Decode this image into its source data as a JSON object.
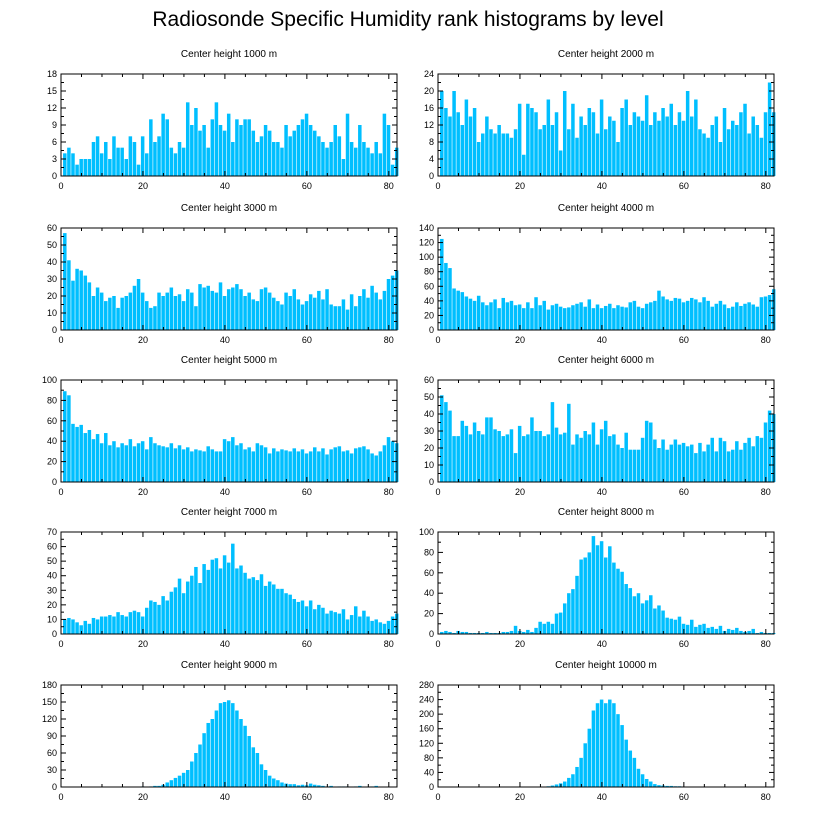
{
  "title": "Radiosonde Specific Humidity rank histograms by level",
  "colors": {
    "bar": "#00bfff",
    "axis": "#000000",
    "background": "#ffffff"
  },
  "chart_data": [
    {
      "type": "bar",
      "title": "Center height 1000 m",
      "xlim": [
        0,
        82
      ],
      "xticks": [
        0,
        20,
        40,
        60,
        80
      ],
      "ylim": [
        0,
        18
      ],
      "yticks": [
        0,
        3,
        6,
        9,
        12,
        15,
        18
      ],
      "values": [
        4,
        5,
        4,
        2,
        3,
        3,
        3,
        6,
        7,
        4,
        6,
        3,
        7,
        5,
        5,
        3,
        7,
        6,
        2,
        7,
        4,
        10,
        6,
        7,
        11,
        10,
        5,
        4,
        6,
        5,
        13,
        9,
        12,
        8,
        9,
        5,
        10,
        13,
        9,
        8,
        11,
        6,
        10,
        9,
        10,
        10,
        8,
        6,
        7,
        9,
        8,
        6,
        6,
        5,
        9,
        7,
        8,
        9,
        10,
        11,
        9,
        8,
        7,
        6,
        5,
        6,
        9,
        7,
        3,
        11,
        6,
        5,
        9,
        6,
        5,
        4,
        6,
        4,
        11,
        9,
        2,
        5
      ]
    },
    {
      "type": "bar",
      "title": "Center height 2000 m",
      "xlim": [
        0,
        82
      ],
      "xticks": [
        0,
        20,
        40,
        60,
        80
      ],
      "ylim": [
        0,
        24
      ],
      "yticks": [
        0,
        4,
        8,
        12,
        16,
        20,
        24
      ],
      "values": [
        20,
        16,
        14,
        20,
        15,
        12,
        18,
        14,
        16,
        8,
        10,
        14,
        11,
        10,
        12,
        10,
        10,
        9,
        11,
        17,
        5,
        17,
        16,
        15,
        11,
        12,
        18,
        12,
        15,
        6,
        20,
        11,
        17,
        9,
        14,
        12,
        16,
        15,
        10,
        18,
        11,
        14,
        13,
        8,
        16,
        18,
        12,
        15,
        14,
        13,
        19,
        12,
        15,
        13,
        16,
        14,
        17,
        12,
        15,
        13,
        20,
        14,
        18,
        11,
        10,
        9,
        12,
        14,
        8,
        16,
        11,
        13,
        12,
        15,
        17,
        10,
        14,
        12,
        9,
        15,
        22,
        15
      ]
    },
    {
      "type": "bar",
      "title": "Center height 3000 m",
      "xlim": [
        0,
        82
      ],
      "xticks": [
        0,
        20,
        40,
        60,
        80
      ],
      "ylim": [
        0,
        60
      ],
      "yticks": [
        0,
        10,
        20,
        30,
        40,
        50,
        60
      ],
      "values": [
        57,
        41,
        29,
        36,
        35,
        32,
        28,
        20,
        25,
        22,
        17,
        19,
        20,
        13,
        19,
        20,
        22,
        26,
        30,
        22,
        17,
        13,
        14,
        22,
        20,
        22,
        25,
        20,
        21,
        17,
        24,
        22,
        14,
        27,
        25,
        26,
        23,
        22,
        28,
        20,
        24,
        25,
        27,
        24,
        20,
        22,
        18,
        17,
        24,
        25,
        22,
        19,
        17,
        15,
        22,
        20,
        24,
        18,
        15,
        17,
        21,
        19,
        23,
        18,
        24,
        15,
        14,
        14,
        18,
        12,
        21,
        14,
        20,
        24,
        19,
        26,
        22,
        18,
        23,
        30,
        32,
        35
      ]
    },
    {
      "type": "bar",
      "title": "Center height 4000 m",
      "xlim": [
        0,
        82
      ],
      "xticks": [
        0,
        20,
        40,
        60,
        80
      ],
      "ylim": [
        0,
        140
      ],
      "yticks": [
        0,
        20,
        40,
        60,
        80,
        100,
        120,
        140
      ],
      "values": [
        125,
        92,
        85,
        57,
        54,
        52,
        46,
        43,
        40,
        47,
        38,
        34,
        38,
        42,
        30,
        44,
        38,
        40,
        34,
        35,
        30,
        38,
        30,
        45,
        34,
        40,
        28,
        34,
        36,
        32,
        30,
        31,
        34,
        36,
        38,
        32,
        42,
        30,
        35,
        30,
        33,
        36,
        30,
        34,
        32,
        31,
        38,
        40,
        32,
        30,
        36,
        38,
        40,
        54,
        46,
        42,
        40,
        44,
        43,
        38,
        40,
        44,
        42,
        38,
        45,
        40,
        32,
        36,
        40,
        35,
        30,
        32,
        38,
        33,
        36,
        38,
        35,
        32,
        45,
        46,
        48,
        56
      ]
    },
    {
      "type": "bar",
      "title": "Center height 5000 m",
      "xlim": [
        0,
        82
      ],
      "xticks": [
        0,
        20,
        40,
        60,
        80
      ],
      "ylim": [
        0,
        100
      ],
      "yticks": [
        0,
        20,
        40,
        60,
        80,
        100
      ],
      "values": [
        89,
        85,
        57,
        54,
        56,
        48,
        51,
        42,
        47,
        38,
        48,
        36,
        40,
        34,
        38,
        36,
        42,
        35,
        38,
        40,
        32,
        44,
        38,
        36,
        35,
        34,
        38,
        33,
        36,
        32,
        34,
        30,
        32,
        31,
        30,
        35,
        32,
        30,
        30,
        42,
        40,
        44,
        36,
        38,
        32,
        34,
        30,
        38,
        36,
        34,
        28,
        33,
        30,
        32,
        31,
        30,
        33,
        30,
        32,
        28,
        30,
        34,
        30,
        33,
        27,
        32,
        34,
        35,
        30,
        31,
        28,
        33,
        34,
        35,
        32,
        28,
        26,
        30,
        36,
        44,
        40,
        38
      ]
    },
    {
      "type": "bar",
      "title": "Center height 6000 m",
      "xlim": [
        0,
        82
      ],
      "xticks": [
        0,
        20,
        40,
        60,
        80
      ],
      "ylim": [
        0,
        60
      ],
      "yticks": [
        0,
        10,
        20,
        30,
        40,
        50,
        60
      ],
      "values": [
        51,
        47,
        42,
        27,
        27,
        36,
        33,
        28,
        35,
        30,
        28,
        38,
        38,
        31,
        30,
        27,
        28,
        31,
        17,
        33,
        27,
        28,
        38,
        30,
        30,
        27,
        28,
        47,
        32,
        28,
        29,
        46,
        22,
        28,
        26,
        30,
        28,
        35,
        22,
        31,
        36,
        27,
        28,
        22,
        20,
        29,
        19,
        19,
        19,
        26,
        36,
        35,
        25,
        20,
        25,
        19,
        22,
        25,
        22,
        23,
        21,
        22,
        17,
        23,
        18,
        22,
        26,
        18,
        26,
        24,
        18,
        19,
        24,
        19,
        23,
        26,
        21,
        27,
        26,
        35,
        42,
        40
      ]
    },
    {
      "type": "bar",
      "title": "Center height 7000 m",
      "xlim": [
        0,
        82
      ],
      "xticks": [
        0,
        20,
        40,
        60,
        80
      ],
      "ylim": [
        0,
        70
      ],
      "yticks": [
        0,
        10,
        20,
        30,
        40,
        50,
        60,
        70
      ],
      "values": [
        10,
        11,
        10,
        8,
        6,
        9,
        7,
        11,
        10,
        12,
        12,
        13,
        12,
        15,
        13,
        12,
        15,
        16,
        15,
        12,
        18,
        23,
        22,
        20,
        26,
        23,
        29,
        32,
        38,
        28,
        36,
        40,
        46,
        35,
        48,
        44,
        51,
        52,
        45,
        54,
        49,
        62,
        45,
        47,
        42,
        38,
        39,
        37,
        41,
        33,
        36,
        34,
        31,
        31,
        28,
        27,
        24,
        22,
        23,
        19,
        23,
        17,
        20,
        18,
        14,
        16,
        15,
        14,
        17,
        10,
        13,
        19,
        12,
        16,
        12,
        9,
        10,
        8,
        7,
        9,
        12,
        14
      ]
    },
    {
      "type": "bar",
      "title": "Center height 8000 m",
      "xlim": [
        0,
        82
      ],
      "xticks": [
        0,
        20,
        40,
        60,
        80
      ],
      "ylim": [
        0,
        100
      ],
      "yticks": [
        0,
        20,
        40,
        60,
        80,
        100
      ],
      "values": [
        2,
        3,
        2,
        1,
        3,
        2,
        2,
        1,
        1,
        1,
        1,
        2,
        1,
        1,
        1,
        2,
        2,
        3,
        8,
        3,
        2,
        4,
        2,
        6,
        12,
        10,
        12,
        10,
        20,
        21,
        30,
        40,
        44,
        57,
        73,
        75,
        80,
        96,
        87,
        91,
        75,
        86,
        70,
        64,
        61,
        49,
        45,
        37,
        40,
        30,
        33,
        38,
        25,
        28,
        23,
        16,
        15,
        14,
        17,
        10,
        9,
        14,
        7,
        9,
        10,
        6,
        7,
        5,
        8,
        3,
        5,
        4,
        6,
        3,
        2,
        3,
        5,
        1,
        2,
        1,
        1,
        1
      ]
    },
    {
      "type": "bar",
      "title": "Center height 9000 m",
      "xlim": [
        0,
        82
      ],
      "xticks": [
        0,
        20,
        40,
        60,
        80
      ],
      "ylim": [
        0,
        180
      ],
      "yticks": [
        0,
        30,
        60,
        90,
        120,
        150,
        180
      ],
      "values": [
        0,
        0,
        0,
        0,
        0,
        0,
        0,
        0,
        0,
        0,
        0,
        0,
        0,
        0,
        0,
        0,
        0,
        0,
        0,
        1,
        0,
        1,
        2,
        2,
        4,
        8,
        12,
        16,
        20,
        25,
        30,
        45,
        60,
        75,
        95,
        113,
        120,
        135,
        148,
        150,
        153,
        148,
        135,
        120,
        108,
        90,
        70,
        60,
        40,
        30,
        20,
        15,
        12,
        8,
        6,
        5,
        5,
        3,
        4,
        3,
        6,
        4,
        3,
        2,
        1,
        2,
        0,
        1,
        1,
        1,
        0,
        1,
        2,
        0,
        0,
        1,
        2,
        0,
        0,
        0,
        0,
        0
      ]
    },
    {
      "type": "bar",
      "title": "Center height 10000 m",
      "xlim": [
        0,
        82
      ],
      "xticks": [
        0,
        20,
        40,
        60,
        80
      ],
      "ylim": [
        0,
        280
      ],
      "yticks": [
        0,
        40,
        80,
        120,
        160,
        200,
        240,
        280
      ],
      "values": [
        0,
        0,
        0,
        0,
        0,
        0,
        0,
        0,
        0,
        0,
        0,
        0,
        0,
        0,
        0,
        0,
        0,
        0,
        0,
        0,
        0,
        0,
        0,
        0,
        0,
        1,
        2,
        4,
        7,
        10,
        15,
        25,
        35,
        55,
        80,
        120,
        160,
        210,
        230,
        240,
        230,
        240,
        230,
        200,
        170,
        130,
        100,
        80,
        50,
        35,
        22,
        15,
        8,
        5,
        4,
        3,
        3,
        2,
        2,
        1,
        1,
        1,
        1,
        1,
        0,
        0,
        0,
        0,
        0,
        0,
        0,
        0,
        0,
        0,
        0,
        0,
        0,
        0,
        0,
        0,
        0,
        0
      ]
    }
  ]
}
